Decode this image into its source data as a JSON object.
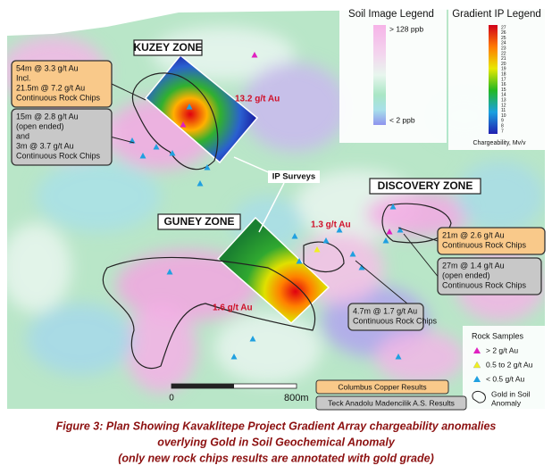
{
  "soil_legend": {
    "title": "Soil Image Legend",
    "high": "> 128 ppb",
    "low": "< 2 ppb"
  },
  "ip_legend": {
    "title": "Gradient IP Legend",
    "scale": [
      27,
      26,
      25,
      24,
      23,
      22,
      21,
      20,
      19,
      18,
      17,
      16,
      15,
      14,
      13,
      12,
      11,
      10,
      9,
      8,
      7
    ],
    "unit": "Chargeability, Mv/v"
  },
  "zones": [
    "KUZEY ZONE",
    "GUNEY ZONE",
    "DISCOVERY ZONE"
  ],
  "ip_label": "IP Surveys",
  "callouts": [
    {
      "lines": [
        "54m @ 3.3 g/t Au",
        "Incl.",
        "21.5m @ 7.2 g/t Au",
        "Continuous Rock Chips"
      ]
    },
    {
      "lines": [
        "15m @ 2.8 g/t Au",
        "(open ended)",
        "and",
        "3m @ 3.7 g/t Au",
        "Continuous Rock Chips"
      ]
    },
    {
      "lines": [
        "21m @ 2.6 g/t Au",
        "Continuous Rock Chips"
      ]
    },
    {
      "lines": [
        "27m @ 1.4 g/t Au",
        "(open ended)",
        "Continuous Rock Chips"
      ]
    },
    {
      "lines": [
        "4.7m @ 1.7 g/t Au",
        "Continuous Rock Chips"
      ]
    }
  ],
  "point_labels": [
    "13.2 g/t Au",
    "1.3 g/t Au",
    "1.6 g/t Au"
  ],
  "rock_legend": {
    "title": "Rock Samples",
    "items": [
      "> 2 g/t Au",
      "0.5 to 2 g/t Au",
      "< 0.5 g/t Au"
    ],
    "anomaly": [
      "Gold in Soil",
      "Anomaly"
    ]
  },
  "scale_bar": {
    "start": "0",
    "end": "800m"
  },
  "sources": [
    "Columbus Copper Results",
    "Teck Anadolu Madencilik A.S. Results"
  ],
  "caption": [
    "Figure 3: Plan Showing Kavaklitepe Project Gradient Array chargeability anomalies",
    "overlying Gold in Soil Geochemical Anomaly",
    "(only new rock chips results are annotated with gold grade)"
  ]
}
